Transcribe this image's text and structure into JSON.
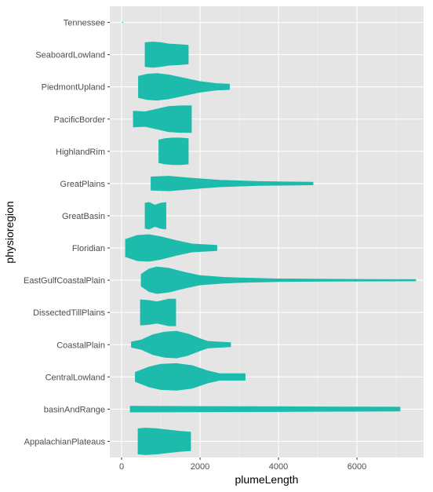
{
  "chart_data": {
    "type": "violin",
    "orientation": "horizontal",
    "xlabel": "plumeLength",
    "ylabel": "physioregion",
    "xlim": [
      -300,
      7700
    ],
    "x_ticks": [
      0,
      2000,
      4000,
      6000
    ],
    "grid": true,
    "fill_color": "#1dbbab",
    "panel_color": "#e5e5e5",
    "categories": [
      "AppalachianPlateaus",
      "basinAndRange",
      "CentralLowland",
      "CoastalPlain",
      "DissectedTillPlains",
      "EastGulfCoastalPlain",
      "Floridian",
      "GreatBasin",
      "GreatPlains",
      "HighlandRim",
      "PacificBorder",
      "PiedmontUpland",
      "SeaboardLowland",
      "Tennessee"
    ],
    "violins": [
      {
        "category": "AppalachianPlateaus",
        "min": 420,
        "max": 1760,
        "profile": [
          [
            420,
            0.95
          ],
          [
            600,
            1.0
          ],
          [
            900,
            0.95
          ],
          [
            1200,
            0.85
          ],
          [
            1500,
            0.75
          ],
          [
            1760,
            0.7
          ]
        ]
      },
      {
        "category": "basinAndRange",
        "min": 220,
        "max": 7100,
        "profile": [
          [
            220,
            0.22
          ],
          [
            2000,
            0.2
          ],
          [
            4000,
            0.18
          ],
          [
            6000,
            0.16
          ],
          [
            7100,
            0.15
          ]
        ]
      },
      {
        "category": "CentralLowland",
        "min": 350,
        "max": 3150,
        "profile": [
          [
            350,
            0.35
          ],
          [
            700,
            0.75
          ],
          [
            1000,
            0.95
          ],
          [
            1400,
            1.0
          ],
          [
            1800,
            0.85
          ],
          [
            2200,
            0.45
          ],
          [
            2500,
            0.25
          ],
          [
            2700,
            0.25
          ],
          [
            3150,
            0.25
          ]
        ]
      },
      {
        "category": "CoastalPlain",
        "min": 250,
        "max": 2780,
        "profile": [
          [
            250,
            0.2
          ],
          [
            500,
            0.35
          ],
          [
            800,
            0.75
          ],
          [
            1100,
            0.95
          ],
          [
            1400,
            1.0
          ],
          [
            1700,
            0.8
          ],
          [
            2000,
            0.45
          ],
          [
            2200,
            0.25
          ],
          [
            2780,
            0.15
          ]
        ]
      },
      {
        "category": "DissectedTillPlains",
        "min": 480,
        "max": 1380,
        "profile": [
          [
            480,
            0.95
          ],
          [
            700,
            0.9
          ],
          [
            900,
            0.8
          ],
          [
            1050,
            0.9
          ],
          [
            1200,
            1.0
          ],
          [
            1380,
            1.0
          ]
        ]
      },
      {
        "category": "EastGulfCoastalPlain",
        "min": 500,
        "max": 7500,
        "profile": [
          [
            500,
            0.45
          ],
          [
            700,
            0.85
          ],
          [
            900,
            1.0
          ],
          [
            1200,
            0.9
          ],
          [
            1600,
            0.6
          ],
          [
            2000,
            0.35
          ],
          [
            2600,
            0.22
          ],
          [
            3000,
            0.17
          ],
          [
            4000,
            0.1
          ],
          [
            5500,
            0.07
          ],
          [
            7500,
            0.05
          ]
        ]
      },
      {
        "category": "Floridian",
        "min": 100,
        "max": 2430,
        "profile": [
          [
            100,
            0.65
          ],
          [
            400,
            0.95
          ],
          [
            700,
            1.0
          ],
          [
            1000,
            0.85
          ],
          [
            1400,
            0.55
          ],
          [
            1800,
            0.3
          ],
          [
            2430,
            0.2
          ]
        ]
      },
      {
        "category": "GreatBasin",
        "min": 600,
        "max": 1130,
        "profile": [
          [
            600,
            0.95
          ],
          [
            700,
            1.0
          ],
          [
            850,
            0.8
          ],
          [
            1000,
            0.95
          ],
          [
            1130,
            1.0
          ]
        ]
      },
      {
        "category": "GreatPlains",
        "min": 750,
        "max": 4880,
        "profile": [
          [
            750,
            0.5
          ],
          [
            1200,
            0.55
          ],
          [
            1800,
            0.4
          ],
          [
            2500,
            0.25
          ],
          [
            3500,
            0.15
          ],
          [
            4880,
            0.1
          ]
        ]
      },
      {
        "category": "HighlandRim",
        "min": 950,
        "max": 1700,
        "profile": [
          [
            950,
            0.85
          ],
          [
            1100,
            0.95
          ],
          [
            1300,
            1.0
          ],
          [
            1500,
            1.0
          ],
          [
            1700,
            0.95
          ]
        ]
      },
      {
        "category": "PacificBorder",
        "min": 300,
        "max": 1780,
        "profile": [
          [
            300,
            0.6
          ],
          [
            600,
            0.55
          ],
          [
            900,
            0.75
          ],
          [
            1200,
            0.95
          ],
          [
            1500,
            1.0
          ],
          [
            1780,
            1.0
          ]
        ]
      },
      {
        "category": "PiedmontUpland",
        "min": 430,
        "max": 2750,
        "profile": [
          [
            430,
            0.8
          ],
          [
            650,
            0.95
          ],
          [
            900,
            1.0
          ],
          [
            1200,
            0.9
          ],
          [
            1600,
            0.65
          ],
          [
            2000,
            0.4
          ],
          [
            2400,
            0.25
          ],
          [
            2750,
            0.2
          ]
        ]
      },
      {
        "category": "SeaboardLowland",
        "min": 600,
        "max": 1700,
        "profile": [
          [
            600,
            0.9
          ],
          [
            800,
            0.95
          ],
          [
            1000,
            0.9
          ],
          [
            1200,
            0.8
          ],
          [
            1500,
            0.75
          ],
          [
            1700,
            0.7
          ]
        ]
      },
      {
        "category": "Tennessee",
        "min": 20,
        "max": 30,
        "profile": [
          [
            20,
            0.02
          ],
          [
            30,
            0.02
          ]
        ]
      }
    ]
  }
}
